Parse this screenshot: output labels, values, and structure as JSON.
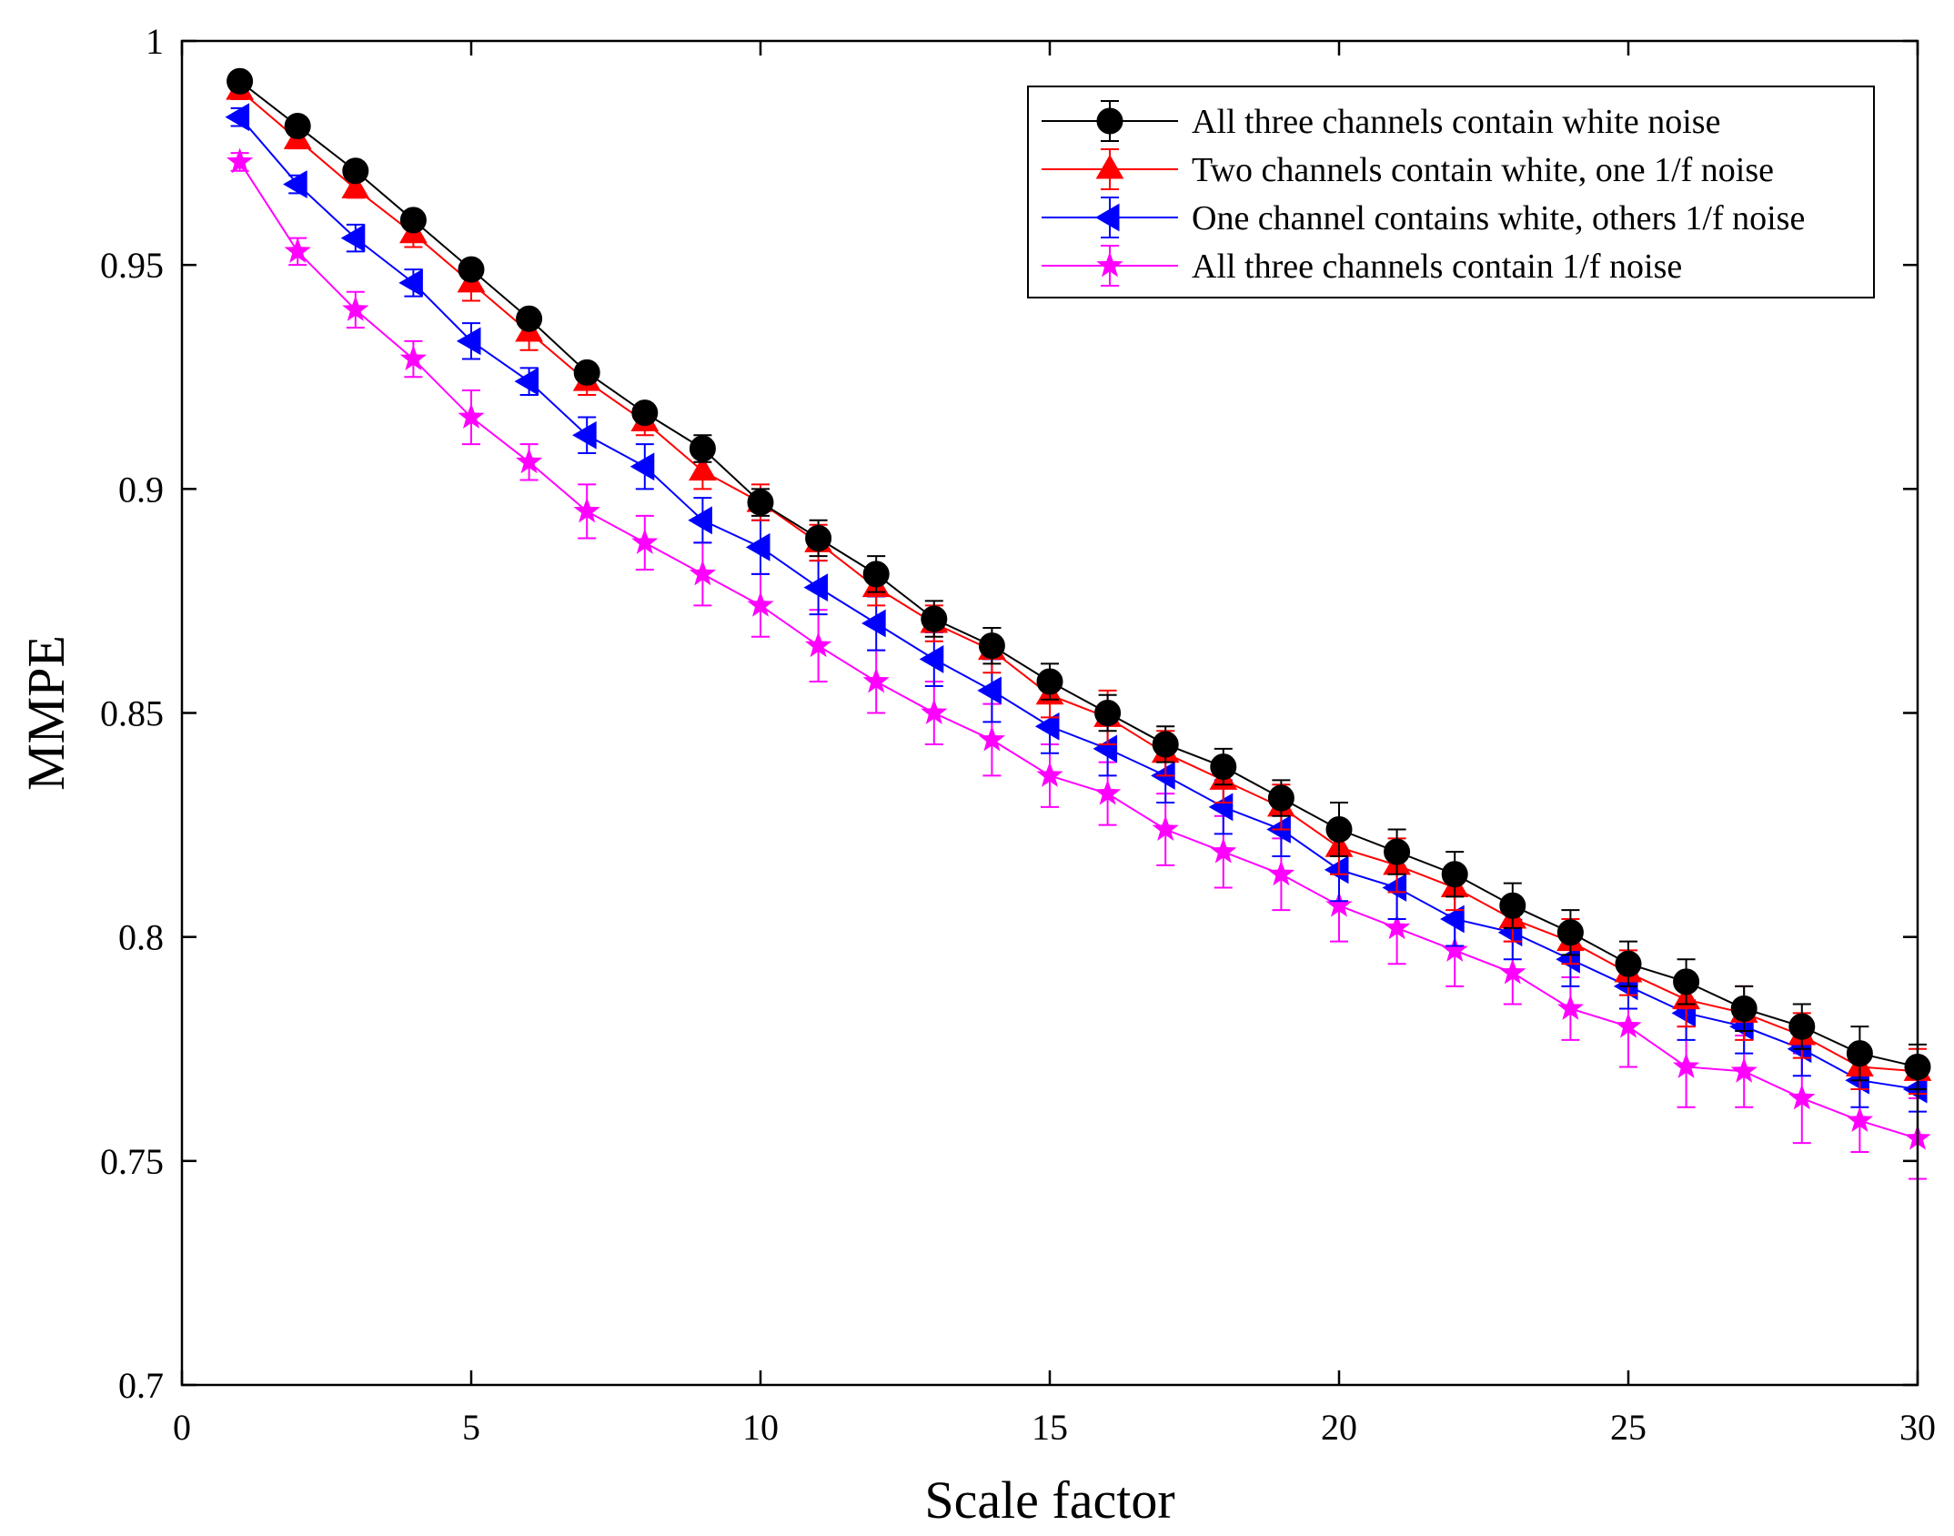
{
  "chart_data": {
    "type": "line",
    "title": "",
    "xlabel": "Scale factor",
    "ylabel": "MMPE",
    "xlim": [
      0,
      30
    ],
    "ylim": [
      0.7,
      1.0
    ],
    "xticks": [
      0,
      5,
      10,
      15,
      20,
      25,
      30
    ],
    "yticks": [
      0.7,
      0.75,
      0.8,
      0.85,
      0.9,
      0.95,
      1.0
    ],
    "xtick_labels": [
      "0",
      "5",
      "10",
      "15",
      "20",
      "25",
      "30"
    ],
    "ytick_labels": [
      "0.7",
      "0.75",
      "0.8",
      "0.85",
      "0.9",
      "0.95",
      "1"
    ],
    "grid": false,
    "legend_position": "top-right",
    "x": [
      1,
      2,
      3,
      4,
      5,
      6,
      7,
      8,
      9,
      10,
      11,
      12,
      13,
      14,
      15,
      16,
      17,
      18,
      19,
      20,
      21,
      22,
      23,
      24,
      25,
      26,
      27,
      28,
      29,
      30
    ],
    "series": [
      {
        "name": "All three channels contain white noise",
        "color": "#000000",
        "marker": "circle",
        "values": [
          0.991,
          0.981,
          0.971,
          0.96,
          0.949,
          0.938,
          0.926,
          0.917,
          0.909,
          0.897,
          0.889,
          0.881,
          0.871,
          0.865,
          0.857,
          0.85,
          0.843,
          0.838,
          0.831,
          0.824,
          0.819,
          0.814,
          0.807,
          0.801,
          0.794,
          0.79,
          0.784,
          0.78,
          0.774,
          0.771
        ],
        "errors": [
          0.002,
          0.002,
          0.002,
          0.002,
          0.002,
          0.002,
          0.002,
          0.002,
          0.003,
          0.003,
          0.004,
          0.004,
          0.004,
          0.004,
          0.004,
          0.004,
          0.004,
          0.004,
          0.004,
          0.006,
          0.005,
          0.005,
          0.005,
          0.005,
          0.005,
          0.005,
          0.005,
          0.005,
          0.006,
          0.005
        ]
      },
      {
        "name": "Two channels contain white, one 1/f noise",
        "color": "#ff0000",
        "marker": "triangle-up",
        "values": [
          0.989,
          0.978,
          0.967,
          0.957,
          0.946,
          0.935,
          0.924,
          0.915,
          0.904,
          0.897,
          0.888,
          0.878,
          0.87,
          0.864,
          0.854,
          0.849,
          0.841,
          0.835,
          0.829,
          0.82,
          0.816,
          0.811,
          0.804,
          0.799,
          0.792,
          0.786,
          0.783,
          0.778,
          0.771,
          0.77
        ],
        "errors": [
          0.002,
          0.002,
          0.002,
          0.003,
          0.004,
          0.004,
          0.003,
          0.003,
          0.004,
          0.004,
          0.004,
          0.004,
          0.004,
          0.005,
          0.005,
          0.006,
          0.005,
          0.005,
          0.005,
          0.006,
          0.006,
          0.005,
          0.005,
          0.005,
          0.005,
          0.006,
          0.006,
          0.005,
          0.005,
          0.005
        ]
      },
      {
        "name": "One channel contains white, others 1/f noise",
        "color": "#0000ff",
        "marker": "triangle-left",
        "values": [
          0.983,
          0.968,
          0.956,
          0.946,
          0.933,
          0.924,
          0.912,
          0.905,
          0.893,
          0.887,
          0.878,
          0.87,
          0.862,
          0.855,
          0.847,
          0.842,
          0.836,
          0.829,
          0.824,
          0.815,
          0.811,
          0.804,
          0.801,
          0.795,
          0.789,
          0.783,
          0.78,
          0.775,
          0.768,
          0.766
        ],
        "errors": [
          0.002,
          0.002,
          0.003,
          0.003,
          0.004,
          0.003,
          0.004,
          0.005,
          0.005,
          0.006,
          0.006,
          0.006,
          0.006,
          0.007,
          0.006,
          0.006,
          0.006,
          0.006,
          0.006,
          0.007,
          0.007,
          0.006,
          0.006,
          0.006,
          0.005,
          0.006,
          0.006,
          0.006,
          0.006,
          0.005
        ]
      },
      {
        "name": "All three channels contain 1/f noise",
        "color": "#ff00ff",
        "marker": "star",
        "values": [
          0.973,
          0.953,
          0.94,
          0.929,
          0.916,
          0.906,
          0.895,
          0.888,
          0.881,
          0.874,
          0.865,
          0.857,
          0.85,
          0.844,
          0.836,
          0.832,
          0.824,
          0.819,
          0.814,
          0.807,
          0.802,
          0.797,
          0.792,
          0.784,
          0.78,
          0.771,
          0.77,
          0.764,
          0.759,
          0.755
        ],
        "errors": [
          0.002,
          0.003,
          0.004,
          0.004,
          0.006,
          0.004,
          0.006,
          0.006,
          0.007,
          0.007,
          0.008,
          0.007,
          0.007,
          0.008,
          0.007,
          0.007,
          0.008,
          0.008,
          0.008,
          0.008,
          0.008,
          0.008,
          0.007,
          0.007,
          0.009,
          0.009,
          0.008,
          0.01,
          0.007,
          0.009
        ]
      }
    ]
  }
}
